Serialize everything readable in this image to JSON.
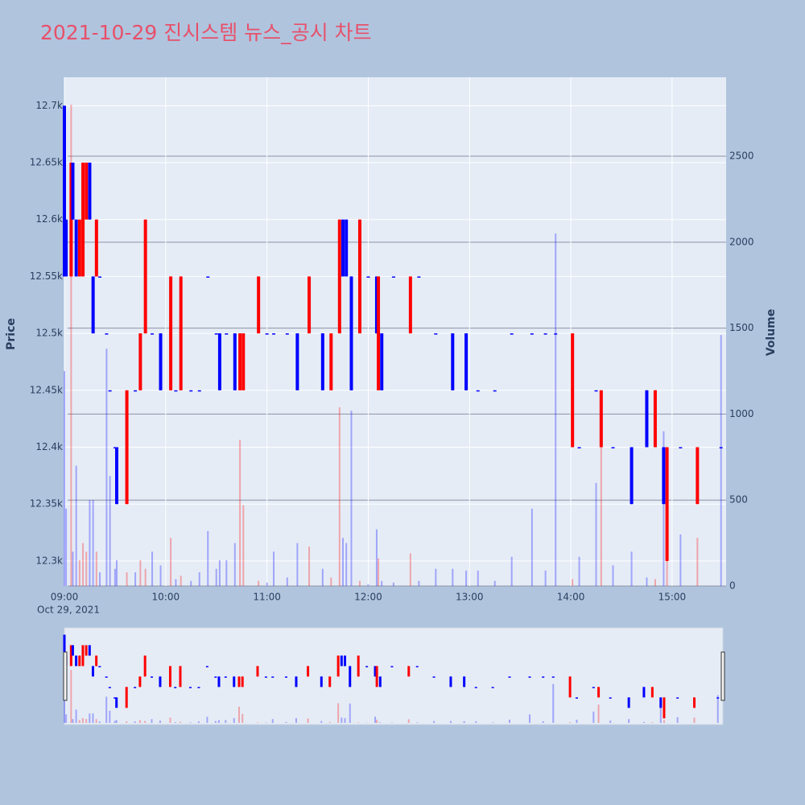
{
  "chart_data": {
    "type": "candlestick",
    "title": "2021-10-29 진시스템 뉴스_공시 차트",
    "y_title": "Price",
    "y2_title": "Volume",
    "x_date_label": "Oct 29, 2021",
    "increasing_color": "#ff0000",
    "decreasing_color": "#0000ff",
    "increasing_volume_color": "rgba(255,0,0,0.3)",
    "decreasing_volume_color": "rgba(0,0,255,0.3)",
    "x": [
      "09:00",
      "09:01",
      "09:04",
      "09:05",
      "09:07",
      "09:09",
      "09:11",
      "09:13",
      "09:15",
      "09:17",
      "09:19",
      "09:21",
      "09:25",
      "09:27",
      "09:30",
      "09:31",
      "09:37",
      "09:42",
      "09:45",
      "09:48",
      "09:52",
      "09:57",
      "10:03",
      "10:06",
      "10:09",
      "10:15",
      "10:20",
      "10:25",
      "10:30",
      "10:32",
      "10:36",
      "10:41",
      "10:44",
      "10:46",
      "10:55",
      "11:00",
      "11:04",
      "11:12",
      "11:18",
      "11:25",
      "11:33",
      "11:38",
      "11:43",
      "11:45",
      "11:47",
      "11:50",
      "11:55",
      "12:00",
      "12:05",
      "12:06",
      "12:08",
      "12:15",
      "12:25",
      "12:30",
      "12:40",
      "12:50",
      "12:58",
      "13:05",
      "13:15",
      "13:25",
      "13:37",
      "13:45",
      "13:51",
      "14:01",
      "14:05",
      "14:15",
      "14:18",
      "14:25",
      "14:36",
      "14:45",
      "14:50",
      "14:55",
      "14:57",
      "15:05",
      "15:15",
      "15:29"
    ],
    "open": [
      12700,
      12600,
      12550,
      12650,
      12600,
      12550,
      12550,
      12600,
      12650,
      12550,
      12550,
      12550,
      12500,
      12450,
      12400,
      12400,
      12350,
      12450,
      12450,
      12500,
      12500,
      12500,
      12450,
      12450,
      12450,
      12450,
      12450,
      12550,
      12500,
      12500,
      12500,
      12500,
      12450,
      12450,
      12500,
      12500,
      12500,
      12500,
      12500,
      12500,
      12500,
      12450,
      12500,
      12600,
      12600,
      12550,
      12500,
      12550,
      12550,
      12450,
      12500,
      12550,
      12500,
      12550,
      12500,
      12500,
      12500,
      12450,
      12450,
      12500,
      12500,
      12500,
      12500,
      12400,
      12400,
      12450,
      12400,
      12400,
      12400,
      12450,
      12400,
      12400,
      12300,
      12400,
      12350,
      12400
    ],
    "high": [
      12700,
      12600,
      12650,
      12650,
      12600,
      12600,
      12650,
      12650,
      12650,
      12550,
      12600,
      12550,
      12500,
      12450,
      12400,
      12400,
      12450,
      12450,
      12500,
      12600,
      12500,
      12500,
      12550,
      12450,
      12550,
      12450,
      12450,
      12550,
      12500,
      12500,
      12500,
      12500,
      12500,
      12500,
      12550,
      12500,
      12500,
      12500,
      12500,
      12550,
      12500,
      12500,
      12600,
      12600,
      12600,
      12550,
      12600,
      12550,
      12550,
      12550,
      12500,
      12550,
      12550,
      12550,
      12500,
      12500,
      12500,
      12450,
      12450,
      12500,
      12500,
      12500,
      12500,
      12500,
      12400,
      12450,
      12450,
      12400,
      12400,
      12450,
      12450,
      12400,
      12400,
      12400,
      12400,
      12400
    ],
    "low": [
      12550,
      12550,
      12550,
      12600,
      12550,
      12550,
      12550,
      12600,
      12600,
      12500,
      12550,
      12550,
      12500,
      12450,
      12400,
      12350,
      12350,
      12450,
      12450,
      12500,
      12500,
      12450,
      12450,
      12450,
      12450,
      12450,
      12450,
      12550,
      12500,
      12450,
      12500,
      12450,
      12450,
      12450,
      12500,
      12500,
      12500,
      12500,
      12450,
      12500,
      12450,
      12450,
      12500,
      12550,
      12550,
      12450,
      12500,
      12550,
      12500,
      12450,
      12450,
      12550,
      12500,
      12550,
      12500,
      12450,
      12450,
      12450,
      12450,
      12500,
      12500,
      12500,
      12500,
      12400,
      12400,
      12450,
      12400,
      12400,
      12350,
      12400,
      12400,
      12350,
      12300,
      12400,
      12350,
      12400
    ],
    "close": [
      12550,
      12550,
      12650,
      12600,
      12550,
      12600,
      12650,
      12650,
      12600,
      12500,
      12600,
      12550,
      12500,
      12450,
      12400,
      12350,
      12450,
      12450,
      12500,
      12600,
      12500,
      12450,
      12550,
      12450,
      12550,
      12450,
      12450,
      12550,
      12500,
      12450,
      12500,
      12450,
      12500,
      12500,
      12550,
      12500,
      12500,
      12500,
      12450,
      12550,
      12450,
      12500,
      12600,
      12550,
      12550,
      12450,
      12600,
      12550,
      12500,
      12550,
      12450,
      12550,
      12550,
      12550,
      12500,
      12450,
      12450,
      12450,
      12450,
      12500,
      12500,
      12500,
      12500,
      12500,
      12400,
      12450,
      12450,
      12400,
      12350,
      12400,
      12450,
      12350,
      12400,
      12400,
      12400,
      12400
    ],
    "volume": [
      1250,
      450,
      2800,
      200,
      700,
      150,
      250,
      200,
      500,
      500,
      200,
      80,
      1380,
      640,
      100,
      150,
      80,
      80,
      150,
      100,
      200,
      120,
      280,
      40,
      60,
      30,
      80,
      320,
      100,
      150,
      150,
      250,
      850,
      470,
      30,
      20,
      200,
      50,
      250,
      230,
      100,
      50,
      1040,
      280,
      250,
      1020,
      30,
      10,
      330,
      160,
      30,
      20,
      190,
      30,
      100,
      100,
      90,
      90,
      30,
      170,
      450,
      90,
      2050,
      40,
      170,
      600,
      970,
      120,
      200,
      50,
      40,
      900,
      150,
      300,
      280,
      1460
    ],
    "xlim": [
      "09:00",
      "15:32"
    ],
    "xticks": [
      "09:00",
      "10:00",
      "11:00",
      "12:00",
      "13:00",
      "14:00",
      "15:00"
    ],
    "ylim": [
      12278,
      12725
    ],
    "yticks": [
      {
        "value": 12300,
        "label": "12.3k"
      },
      {
        "value": 12350,
        "label": "12.35k"
      },
      {
        "value": 12400,
        "label": "12.4k"
      },
      {
        "value": 12450,
        "label": "12.45k"
      },
      {
        "value": 12500,
        "label": "12.5k"
      },
      {
        "value": 12550,
        "label": "12.55k"
      },
      {
        "value": 12600,
        "label": "12.6k"
      },
      {
        "value": 12650,
        "label": "12.65k"
      },
      {
        "value": 12700,
        "label": "12.7k"
      }
    ],
    "y2lim": [
      0,
      2959
    ],
    "y2ticks": [
      0,
      500,
      1000,
      1500,
      2000,
      2500
    ],
    "grid": true,
    "rangeslider": true
  }
}
